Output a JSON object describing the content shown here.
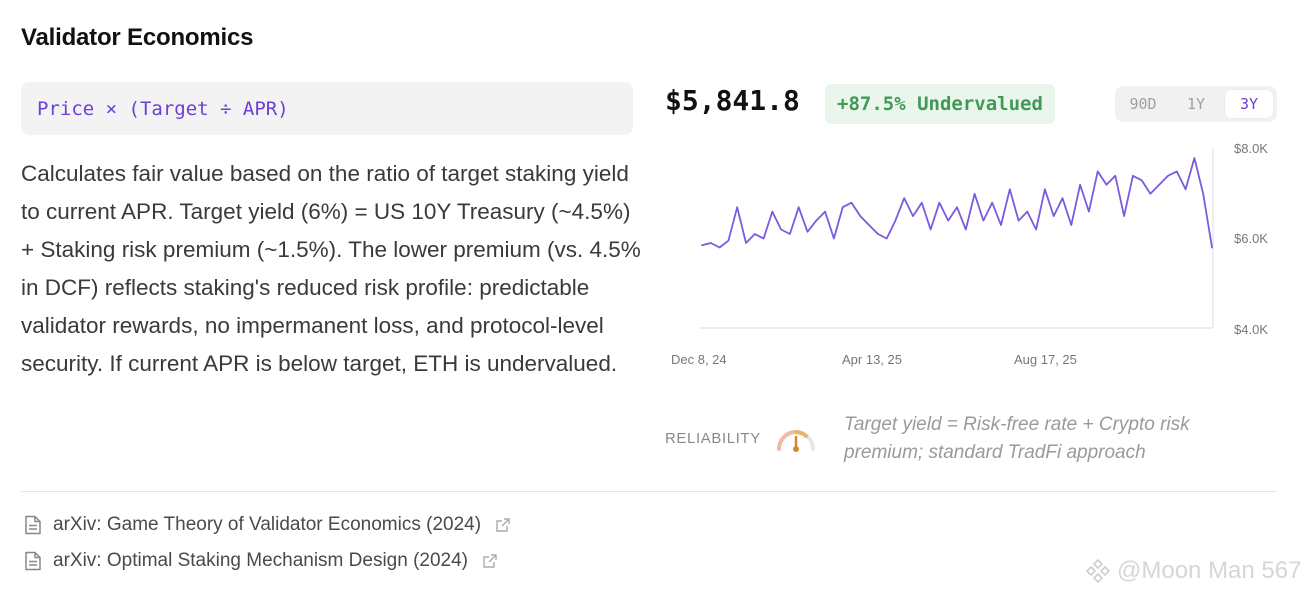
{
  "section": {
    "title": "Validator Economics",
    "formula": "Price × (Target ÷ APR)",
    "description": "Calculates fair value based on the ratio of target staking yield to current APR. Target yield (6%) = US 10Y Treasury (~4.5%) + Staking risk premium (~1.5%). The lower premium (vs. 4.5% in DCF) reflects staking's reduced risk profile: predictable validator rewards, no impermanent loss, and protocol-level security. If current APR is below target, ETH is undervalued."
  },
  "valuation": {
    "price": "$5,841.8",
    "badge": "+87.5% Undervalued",
    "badge_color": "#3f9a56"
  },
  "range_tabs": [
    {
      "label": "90D",
      "active": false
    },
    {
      "label": "1Y",
      "active": false
    },
    {
      "label": "3Y",
      "active": true
    }
  ],
  "chart_data": {
    "type": "line",
    "line_color": "#7c5ae0",
    "x_tick_labels": [
      "Dec 8, 24",
      "Apr 13, 25",
      "Aug 17, 25"
    ],
    "y_tick_labels": [
      "$8.0K",
      "$6.0K",
      "$4.0K"
    ],
    "ylim": [
      4000,
      8000
    ],
    "grid": false,
    "series": [
      {
        "values": [
          5850,
          5900,
          5800,
          5950,
          6700,
          5900,
          6100,
          6000,
          6600,
          6200,
          6100,
          6700,
          6150,
          6400,
          6600,
          6000,
          6700,
          6800,
          6500,
          6300,
          6100,
          6000,
          6400,
          6900,
          6500,
          6800,
          6200,
          6800,
          6400,
          6700,
          6200,
          7000,
          6400,
          6800,
          6300,
          7100,
          6400,
          6600,
          6200,
          7100,
          6500,
          6900,
          6300,
          7200,
          6600,
          7500,
          7200,
          7400,
          6500,
          7400,
          7300,
          7000,
          7200,
          7400,
          7500,
          7100,
          7800,
          7000,
          5800
        ]
      }
    ]
  },
  "reliability": {
    "label": "RELIABILITY",
    "gauge_level": 0.5,
    "note": "Target yield = Risk-free rate + Crypto risk premium; standard TradFi approach"
  },
  "references": [
    {
      "label": "arXiv: Game Theory of Validator Economics (2024)"
    },
    {
      "label": "arXiv: Optimal Staking Mechanism Design (2024)"
    }
  ],
  "watermark": "@Moon Man 567"
}
